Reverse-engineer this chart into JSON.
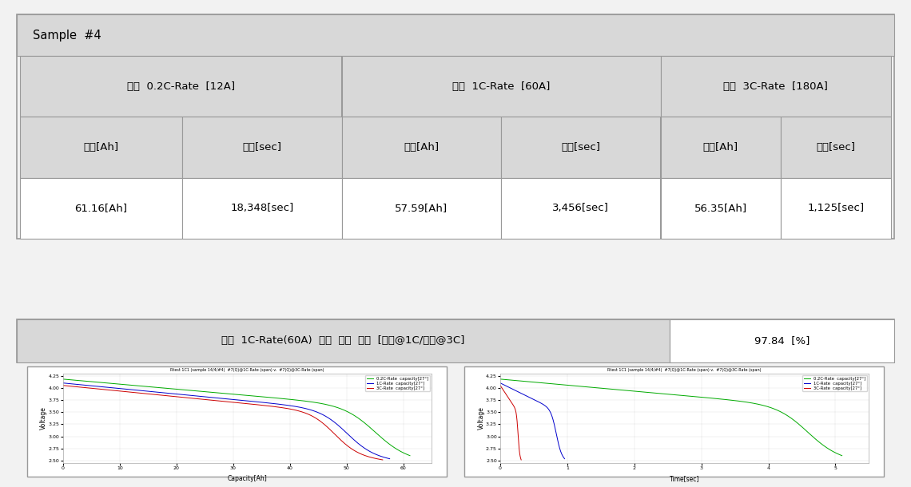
{
  "title_row": "Sample  #4",
  "table_header1": [
    "상온  0.2C-Rate  [12A]",
    "상온  1C-Rate  [60A]",
    "상온  3C-Rate  [180A]"
  ],
  "table_subheader": [
    "용량[Ah]",
    "시간[sec]",
    "용량[Ah]",
    "시간[sec]",
    "용량[Ah]",
    "시간[sec]"
  ],
  "table_data": [
    "61.16[Ah]",
    "18,348[sec]",
    "57.59[Ah]",
    "3,456[sec]",
    "56.35[Ah]",
    "1,125[sec]"
  ],
  "efficiency_label": "상온  1C-Rate(60A)  대비  방전  효율  [상온@1C/상온@3C]",
  "efficiency_value": "97.84  [%]",
  "plot_left_title": "Rtest 1C1 (sample 14/4/#4)  #7(Q)@1C-Rate (span) v.  #7(Q)@3C-Rate (span)",
  "plot_right_title": "Rtest 1C1 (sample 14/4/#4)  #7(Q)@1C-Rate (span) v.  #7(Q)@3C-Rate (span)",
  "left_xlabel": "Capacity[Ah]",
  "right_xlabel": "Time[sec]",
  "ylabel": "Voltage",
  "legend_entries": [
    "0.2C-Rate  capacity[27°]",
    "1C-Rate  capacity[27°]",
    "3C-Rate  capacity[27°]"
  ],
  "line_colors": [
    "#00AA00",
    "#0000CC",
    "#CC0000"
  ],
  "fig_bg": "#F2F2F2",
  "table_bg": "#D8D8D8",
  "cell_bg": "#FFFFFF",
  "border_color": "#999999",
  "ylim": [
    2.45,
    4.3
  ],
  "left_xlim": [
    0,
    65
  ],
  "right_xlim": [
    0,
    5.5
  ]
}
